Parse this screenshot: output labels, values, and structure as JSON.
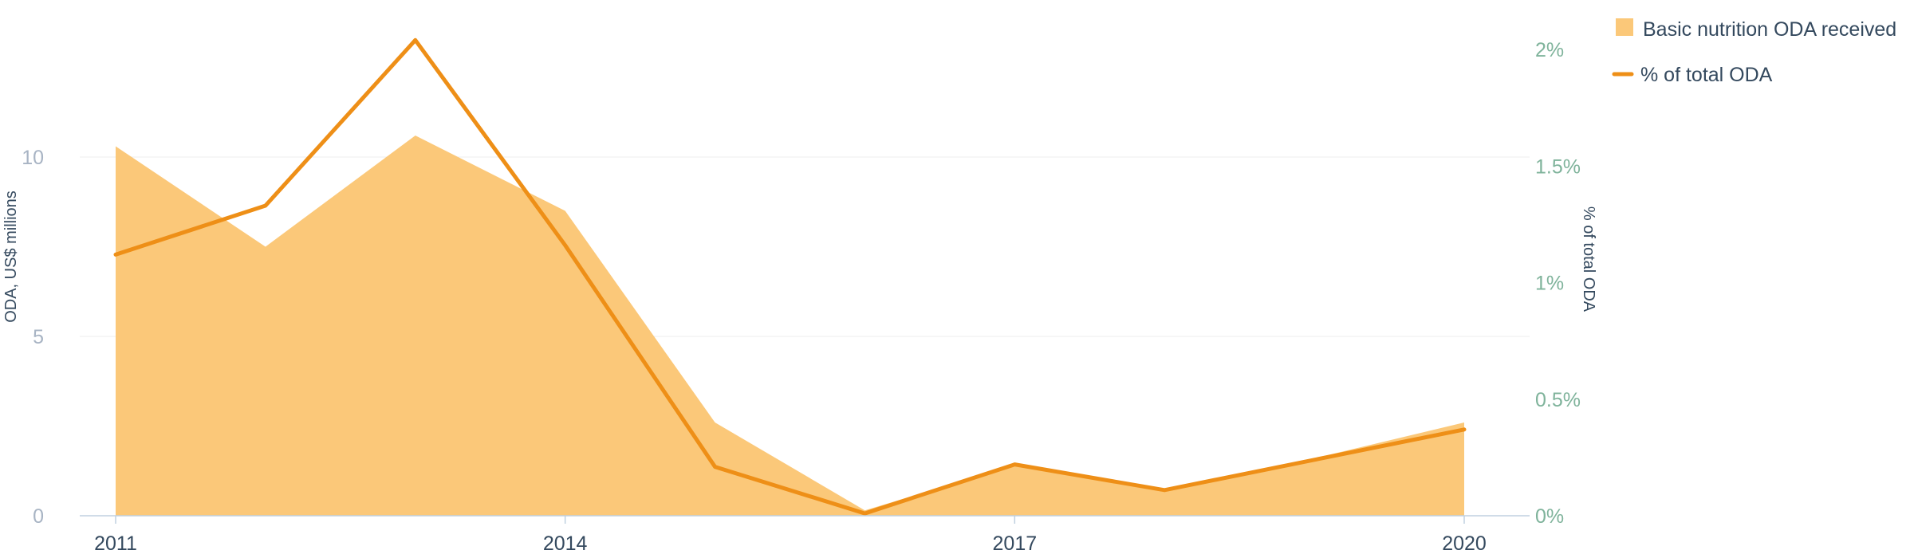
{
  "chart_data": {
    "type": "area+line",
    "x": [
      2011,
      2012,
      2013,
      2014,
      2015,
      2016,
      2017,
      2018,
      2019,
      2020
    ],
    "x_tick_labels": [
      "2011",
      "2014",
      "2017",
      "2020"
    ],
    "xlim": [
      2011,
      2020
    ],
    "series": [
      {
        "name": "Basic nutrition ODA received",
        "kind": "area",
        "axis": "left",
        "color": "#fbc879",
        "values": [
          10.3,
          7.5,
          10.6,
          8.5,
          2.6,
          0.15,
          1.4,
          0.7,
          1.6,
          2.6
        ]
      },
      {
        "name": "% of total ODA",
        "kind": "line",
        "axis": "right",
        "color": "#ee8f17",
        "values": [
          1.12,
          1.33,
          2.04,
          1.16,
          0.21,
          0.01,
          0.22,
          0.11,
          0.24,
          0.37
        ]
      }
    ],
    "y_left": {
      "label": "ODA, US$ millions",
      "range": [
        0,
        13
      ],
      "ticks": [
        0,
        5,
        10
      ],
      "tick_labels": [
        "0",
        "5",
        "10"
      ]
    },
    "y_right": {
      "label": "% of total ODA",
      "range": [
        0,
        2.0
      ],
      "ticks": [
        0,
        0.5,
        1,
        1.5,
        2
      ],
      "tick_labels": [
        "0%",
        "0.5%",
        "1%",
        "1.5%",
        "2%"
      ]
    },
    "grid": true,
    "legend_position": "top-right",
    "colors": {
      "grid": "#ececec",
      "axis_line": "#c0d0e0",
      "left_tick": "#a8b4c4",
      "right_tick_muted": "#a8b4c4",
      "right_tick_accent": "#7fb39b",
      "text": "#34495e"
    }
  }
}
